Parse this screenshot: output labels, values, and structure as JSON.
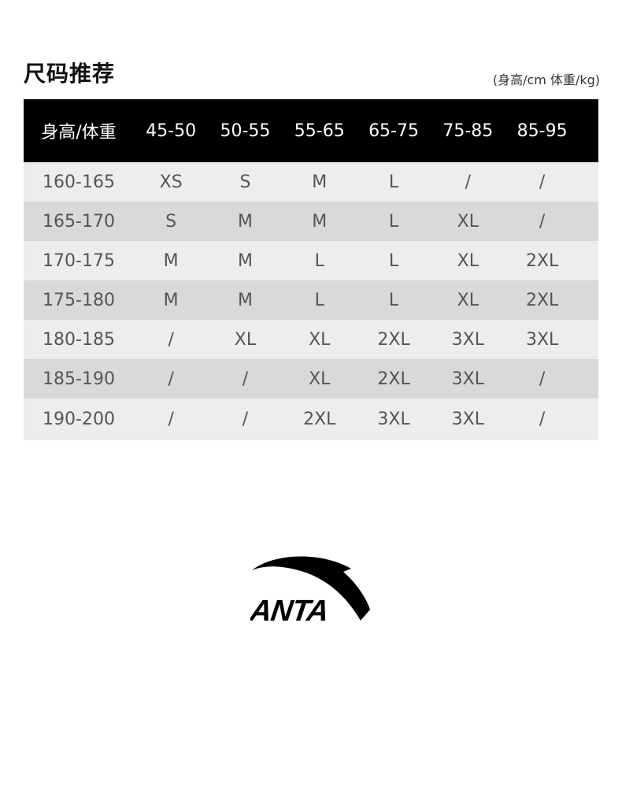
{
  "title": "尺码推荐",
  "units": "(身高/cm  体重/kg)",
  "table": {
    "header": [
      "身高/体重",
      "45-50",
      "50-55",
      "55-65",
      "65-75",
      "75-85",
      "85-95"
    ],
    "rows": [
      [
        "160-165",
        "XS",
        "S",
        "M",
        "L",
        "/",
        "/"
      ],
      [
        "165-170",
        "S",
        "M",
        "M",
        "L",
        "XL",
        "/"
      ],
      [
        "170-175",
        "M",
        "M",
        "L",
        "L",
        "XL",
        "2XL"
      ],
      [
        "175-180",
        "M",
        "M",
        "L",
        "L",
        "XL",
        "2XL"
      ],
      [
        "180-185",
        "/",
        "XL",
        "XL",
        "2XL",
        "3XL",
        "3XL"
      ],
      [
        "185-190",
        "/",
        "/",
        "XL",
        "2XL",
        "3XL",
        "/"
      ],
      [
        "190-200",
        "/",
        "/",
        "2XL",
        "3XL",
        "3XL",
        "/"
      ]
    ]
  },
  "logo": {
    "text": "ANTA",
    "color": "#000000"
  }
}
